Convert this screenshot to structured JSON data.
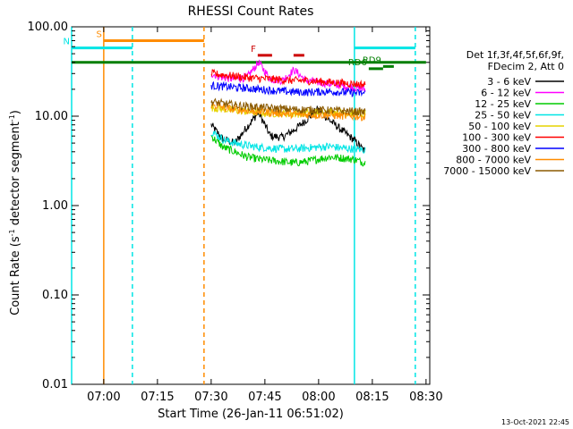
{
  "chart_data": {
    "type": "line",
    "title": "RHESSI Count Rates",
    "xlabel": "Start Time (26-Jan-11 06:51:02)",
    "ylabel_main": "Count Rate (s",
    "ylabel_sup": "-1",
    "ylabel_tail": " detector segment",
    "ylabel_sup2": "-1",
    "ylabel_close": ")",
    "y_scale": "log",
    "ylim": [
      0.01,
      100.0
    ],
    "xlim": [
      "06:51:02",
      "08:31:02"
    ],
    "grid": false,
    "x_ticks": [
      "07:00",
      "07:15",
      "07:30",
      "07:45",
      "08:00",
      "08:15",
      "08:30"
    ],
    "y_ticks": [
      "0.01",
      "0.10",
      "1.00",
      "10.00",
      "100.00"
    ],
    "legend_header": [
      "Det 1f,3f,4f,5f,6f,9f,",
      "FDecim 2, Att 0"
    ],
    "legend_position": "right",
    "footer_date": "13-Oct-2021 22:45",
    "series": [
      {
        "name": "3 - 6 keV",
        "color": "#000000",
        "t_start": "07:30",
        "t_end": "08:13",
        "values": [
          8.0,
          5.5,
          5.0,
          7.5,
          11.0,
          6.0,
          5.8,
          7.0,
          9.0,
          12.0,
          9.0,
          7.0,
          5.5,
          4.0
        ]
      },
      {
        "name": "6 - 12 keV",
        "color": "#ff00ff",
        "t_start": "07:30",
        "t_end": "08:13",
        "values": [
          30.0,
          27.0,
          26.0,
          27.0,
          40.0,
          26.0,
          25.0,
          33.0,
          25.0,
          24.0,
          23.0,
          22.0,
          21.0,
          20.0
        ]
      },
      {
        "name": "12 - 25 keV",
        "color": "#00cc00",
        "t_start": "07:30",
        "t_end": "08:13",
        "values": [
          6.0,
          4.5,
          4.0,
          3.5,
          3.3,
          3.2,
          3.1,
          3.0,
          3.1,
          3.3,
          3.5,
          3.4,
          3.3,
          3.0
        ]
      },
      {
        "name": "25 - 50 keV",
        "color": "#00e5e5",
        "t_start": "07:30",
        "t_end": "08:13",
        "values": [
          6.8,
          5.5,
          5.0,
          4.7,
          4.5,
          4.4,
          4.3,
          4.3,
          4.4,
          4.5,
          4.6,
          4.4,
          4.3,
          4.2
        ]
      },
      {
        "name": "50 - 100 keV",
        "color": "#e5d400",
        "t_start": "07:30",
        "t_end": "08:13",
        "values": [
          12.5,
          12.0,
          11.6,
          11.3,
          11.0,
          10.8,
          10.7,
          10.6,
          10.8,
          11.0,
          11.2,
          11.0,
          10.7,
          10.5
        ]
      },
      {
        "name": "100 - 300 keV",
        "color": "#ff0000",
        "t_start": "07:30",
        "t_end": "08:13",
        "values": [
          30.0,
          29.0,
          28.0,
          27.0,
          26.5,
          26.0,
          25.5,
          25.0,
          25.0,
          24.5,
          24.0,
          23.5,
          23.0,
          22.5
        ]
      },
      {
        "name": "300 - 800 keV",
        "color": "#0000ff",
        "t_start": "07:30",
        "t_end": "08:13",
        "values": [
          22.0,
          21.5,
          21.0,
          20.5,
          20.0,
          19.5,
          19.0,
          18.7,
          18.5,
          18.7,
          18.9,
          18.6,
          18.3,
          18.0
        ]
      },
      {
        "name": "800 - 7000 keV",
        "color": "#ff8c00",
        "t_start": "07:30",
        "t_end": "08:13",
        "values": [
          13.5,
          12.5,
          12.0,
          11.6,
          11.3,
          11.0,
          10.8,
          10.5,
          10.4,
          10.3,
          10.3,
          10.1,
          10.0,
          9.8
        ]
      },
      {
        "name": "7000 - 15000 keV",
        "color": "#8b5a00",
        "t_start": "07:30",
        "t_end": "08:13",
        "values": [
          14.5,
          13.8,
          13.3,
          12.9,
          12.6,
          12.3,
          12.1,
          11.9,
          11.8,
          11.7,
          11.6,
          11.5,
          11.3,
          11.1
        ]
      }
    ],
    "vertical_lines": [
      {
        "time": "06:51:02",
        "color": "#00e5e5",
        "style": "solid"
      },
      {
        "time": "07:00",
        "color": "#ff8c00",
        "style": "solid"
      },
      {
        "time": "07:08",
        "color": "#00e5e5",
        "style": "dashed"
      },
      {
        "time": "07:28",
        "color": "#ff8c00",
        "style": "dashed"
      },
      {
        "time": "08:10",
        "color": "#00e5e5",
        "style": "solid"
      },
      {
        "time": "08:27",
        "color": "#00e5e5",
        "style": "dashed"
      }
    ],
    "bars": [
      {
        "label": "",
        "color": "#007f00",
        "t_start": "06:51:02",
        "t_end": "08:30",
        "y": 40
      },
      {
        "label": "S",
        "color": "#ff8c00",
        "t_start": "07:00",
        "t_end": "07:28",
        "y": 70
      },
      {
        "label": "N",
        "color": "#00e5e5",
        "t_start": "06:51:02",
        "t_end": "07:08",
        "y": 58
      },
      {
        "label": "",
        "color": "#00e5e5",
        "t_start": "08:10",
        "t_end": "08:27",
        "y": 58
      },
      {
        "label": "F",
        "color": "#cc0000",
        "t_start": "07:43",
        "t_end": "07:47",
        "y": 48
      },
      {
        "label": "",
        "color": "#cc0000",
        "t_start": "07:53",
        "t_end": "07:56",
        "y": 48
      },
      {
        "label": "RD6",
        "color": "#007f00",
        "t_start": "08:14",
        "t_end": "08:18",
        "y": 34
      },
      {
        "label": "RD9",
        "color": "#007f00",
        "t_start": "08:18",
        "t_end": "08:21",
        "y": 36
      }
    ]
  }
}
